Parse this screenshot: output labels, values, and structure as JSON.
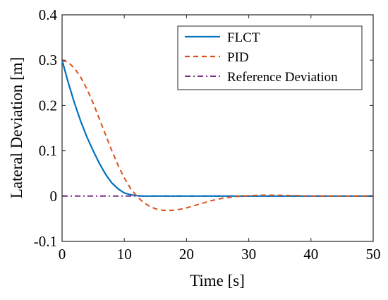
{
  "chart_data": {
    "type": "line",
    "title": "",
    "xlabel": "Time [s]",
    "ylabel": "Lateral Deviation [m]",
    "xlim": [
      0,
      50
    ],
    "ylim": [
      -0.1,
      0.4
    ],
    "xticks": [
      "0",
      "10",
      "20",
      "30",
      "40",
      "50"
    ],
    "yticks": [
      "-0.1",
      "0",
      "0.1",
      "0.2",
      "0.3",
      "0.4"
    ],
    "grid": false,
    "legend_position": "top-right",
    "series": [
      {
        "name": "FLCT",
        "color": "#0072BD",
        "style": "solid",
        "x": [
          0,
          1,
          2,
          3,
          4,
          5,
          6,
          7,
          8,
          9,
          10,
          11,
          12,
          13,
          14,
          16,
          20,
          30,
          40,
          50
        ],
        "y": [
          0.3,
          0.25,
          0.205,
          0.165,
          0.13,
          0.1,
          0.072,
          0.048,
          0.029,
          0.016,
          0.007,
          0.003,
          0.001,
          0.0,
          0.0,
          0.0,
          0.0,
          0.0,
          0.0,
          0.0
        ]
      },
      {
        "name": "PID",
        "color": "#D95319",
        "style": "dashed",
        "x": [
          0,
          1,
          2,
          3,
          4,
          5,
          6,
          7,
          8,
          9,
          10,
          11,
          12,
          13,
          14,
          15,
          16,
          17,
          18,
          19,
          20,
          22,
          24,
          26,
          28,
          30,
          32,
          34,
          36,
          38,
          40,
          45,
          50
        ],
        "y": [
          0.3,
          0.295,
          0.282,
          0.262,
          0.236,
          0.205,
          0.17,
          0.135,
          0.1,
          0.068,
          0.04,
          0.017,
          0.0,
          -0.013,
          -0.022,
          -0.028,
          -0.031,
          -0.032,
          -0.031,
          -0.029,
          -0.026,
          -0.018,
          -0.01,
          -0.004,
          -0.001,
          0.001,
          0.002,
          0.002,
          0.0015,
          0.001,
          0.0,
          0.0,
          0.0
        ]
      },
      {
        "name": "Reference Deviation",
        "color": "#7E2F8E",
        "style": "dashdot",
        "x": [
          0,
          50
        ],
        "y": [
          0,
          0
        ]
      }
    ]
  }
}
